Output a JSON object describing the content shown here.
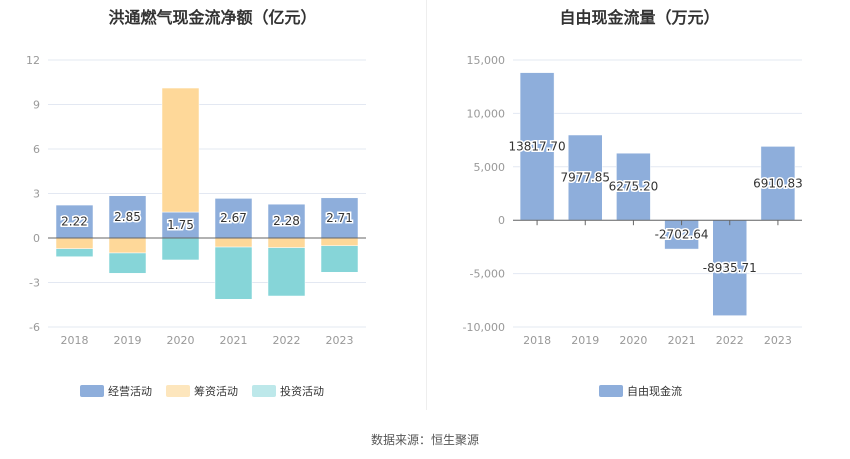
{
  "chart_data": [
    {
      "type": "bar",
      "stacked": true,
      "title": "洪通燃气现金流净额（亿元）",
      "categories": [
        "2018",
        "2019",
        "2020",
        "2021",
        "2022",
        "2023"
      ],
      "ylim": [
        -6,
        12
      ],
      "yticks": [
        -6,
        -3,
        0,
        3,
        6,
        9,
        12
      ],
      "grid": true,
      "legend": "bottom",
      "series": [
        {
          "name": "经营活动",
          "color": "#8eaedb",
          "values": [
            2.22,
            2.85,
            1.75,
            2.67,
            2.28,
            2.71
          ],
          "labels": [
            "2.22",
            "2.85",
            "1.75",
            "2.67",
            "2.28",
            "2.71"
          ]
        },
        {
          "name": "筹资活动",
          "color": "#fed899",
          "values": [
            -0.72,
            -1.01,
            8.36,
            -0.61,
            -0.65,
            -0.52
          ]
        },
        {
          "name": "投资活动",
          "color": "#86d5d8",
          "values": [
            -0.54,
            -1.37,
            -1.48,
            -3.52,
            -3.26,
            -1.79
          ]
        }
      ]
    },
    {
      "type": "bar",
      "title": "自由现金流量（万元）",
      "categories": [
        "2018",
        "2019",
        "2020",
        "2021",
        "2022",
        "2023"
      ],
      "ylim": [
        -10000,
        15000
      ],
      "yticks": [
        -10000,
        -5000,
        0,
        5000,
        10000,
        15000
      ],
      "ytick_labels": [
        "-10,000",
        "-5,000",
        "0",
        "5,000",
        "10,000",
        "15,000"
      ],
      "grid": true,
      "legend": "bottom",
      "series": [
        {
          "name": "自由现金流",
          "color": "#8eaedb",
          "values": [
            13817.7,
            7977.85,
            6275.2,
            -2702.64,
            -8935.71,
            6910.83
          ],
          "labels": [
            "13817.70",
            "7977.85",
            "6275.20",
            "-2702.64",
            "-8935.71",
            "6910.83"
          ]
        }
      ]
    }
  ],
  "footer": "数据来源：恒生聚源"
}
